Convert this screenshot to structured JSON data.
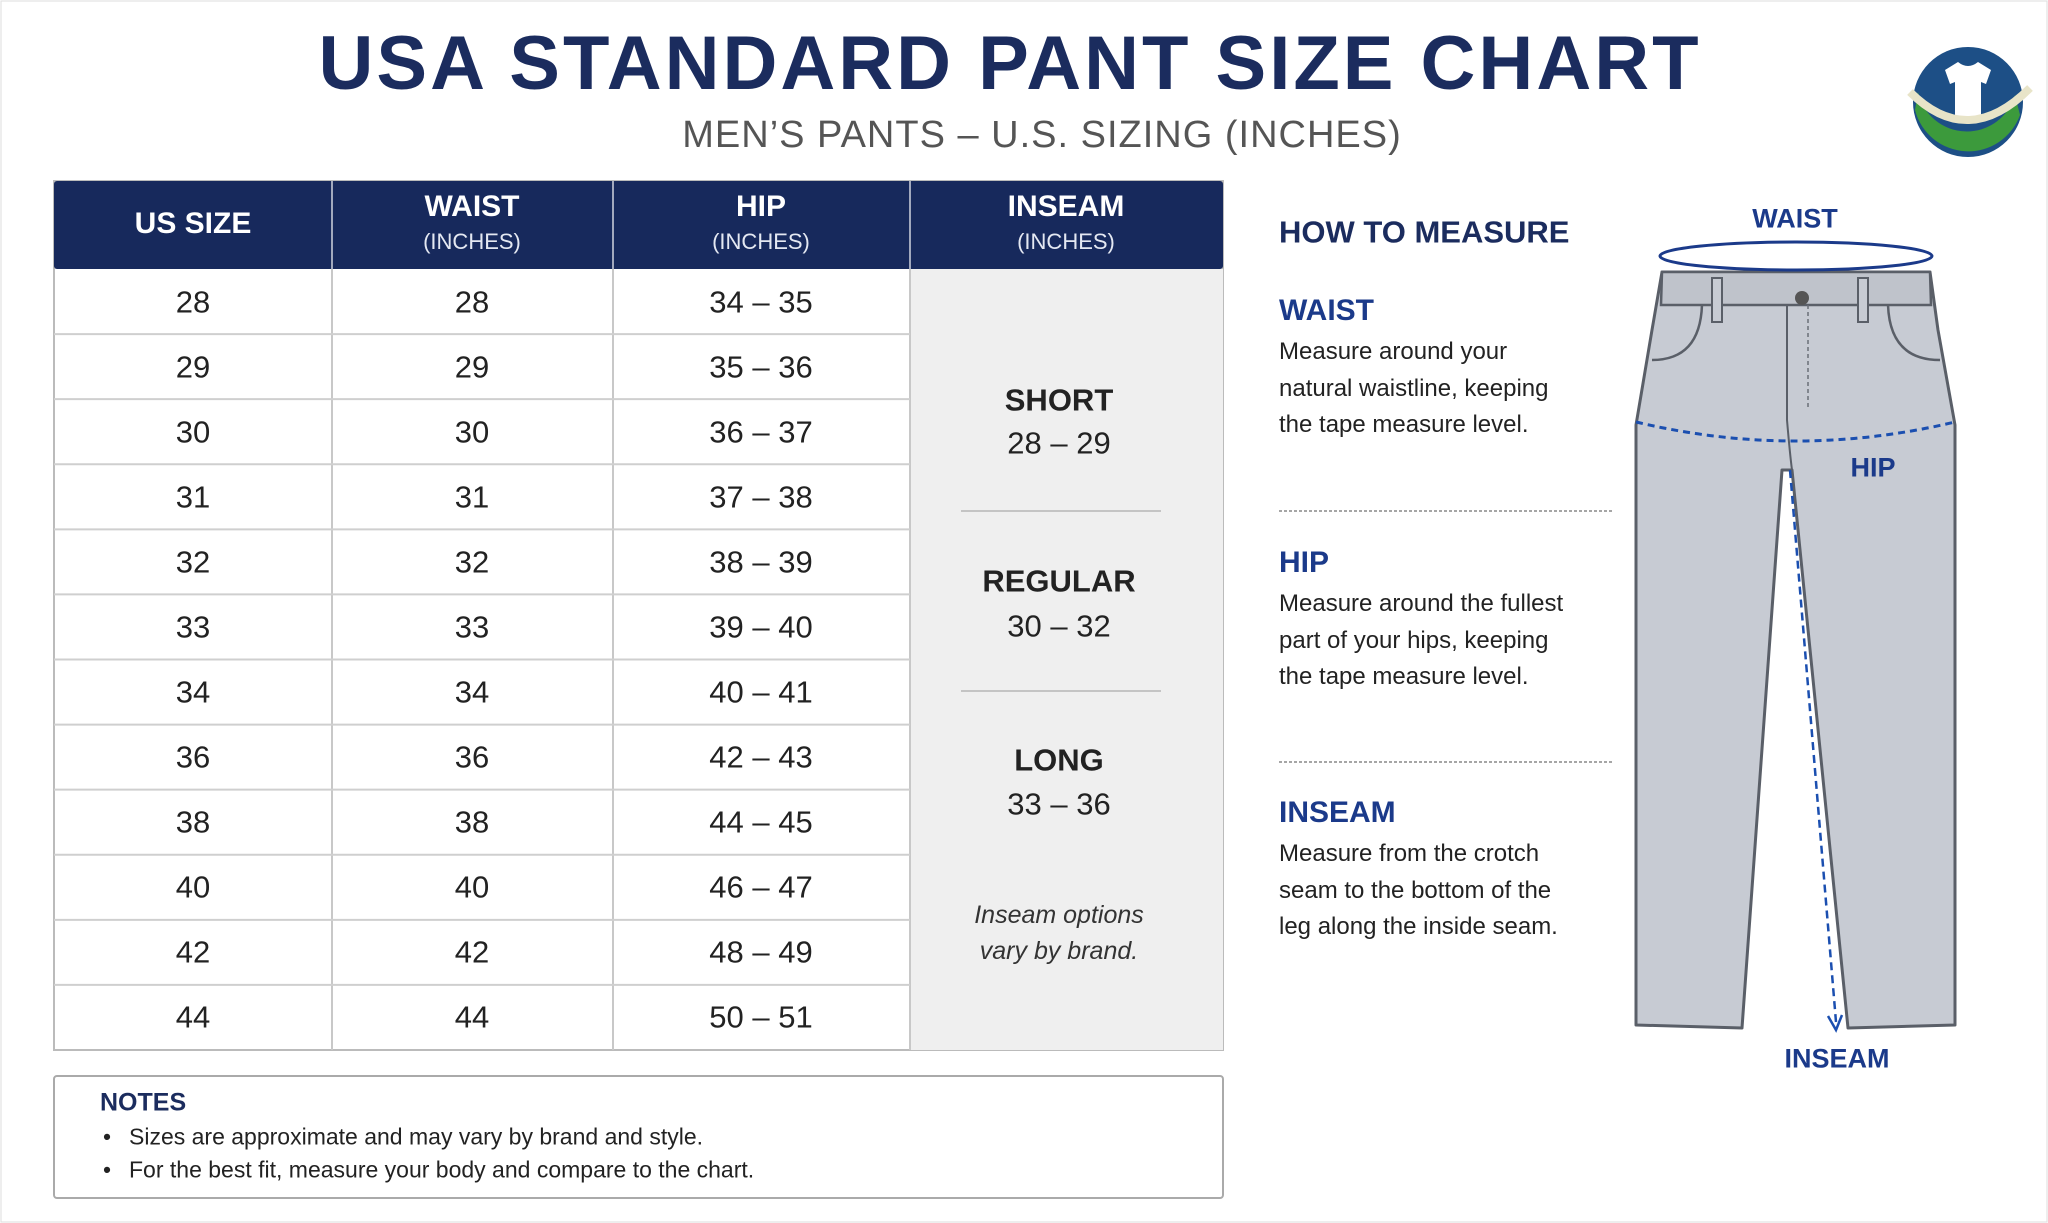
{
  "header": {
    "title": "USA STANDARD PANT SIZE CHART",
    "subtitle": "MEN’S PANTS – U.S. SIZING (INCHES)"
  },
  "table": {
    "columns": [
      {
        "label": "US SIZE"
      },
      {
        "label": "WAIST",
        "unit": "(INCHES)"
      },
      {
        "label": "HIP",
        "unit": "(INCHES)"
      },
      {
        "label": "INSEAM",
        "unit": "(INCHES)"
      }
    ],
    "rows": [
      [
        28,
        28,
        "34 – 35"
      ],
      [
        29,
        29,
        "35 – 36"
      ],
      [
        30,
        30,
        "36 – 37"
      ],
      [
        31,
        31,
        "37 – 38"
      ],
      [
        32,
        32,
        "38 – 39"
      ],
      [
        33,
        33,
        "39 – 40"
      ],
      [
        34,
        34,
        "40 – 41"
      ],
      [
        36,
        36,
        "42 – 43"
      ],
      [
        38,
        38,
        "44 – 45"
      ],
      [
        40,
        40,
        "46 – 47"
      ],
      [
        42,
        42,
        "48 – 49"
      ],
      [
        44,
        44,
        "50 – 51"
      ]
    ],
    "inseam_groups": [
      {
        "label": "SHORT",
        "range": "28 – 29"
      },
      {
        "label": "REGULAR",
        "range": "30 – 32"
      },
      {
        "label": "LONG",
        "range": "33 – 36"
      }
    ],
    "inseam_note": "Inseam options vary by brand."
  },
  "notes": {
    "title": "NOTES",
    "items": [
      "Sizes are approximate and may vary by brand and style.",
      "For the best fit, measure your body and compare to the chart."
    ]
  },
  "how_to_measure": {
    "title": "HOW TO MEASURE",
    "sections": [
      {
        "heading": "WAIST",
        "text": "Measure around your natural waistline, keeping the tape measure level."
      },
      {
        "heading": "HIP",
        "text": "Measure around the fullest part of your hips, keeping the tape measure level."
      },
      {
        "heading": "INSEAM",
        "text": "Measure from the crotch seam to the bottom of the leg along the inside seam."
      }
    ]
  },
  "diagram_labels": {
    "waist": "WAIST",
    "hip": "HIP",
    "inseam": "INSEAM"
  }
}
